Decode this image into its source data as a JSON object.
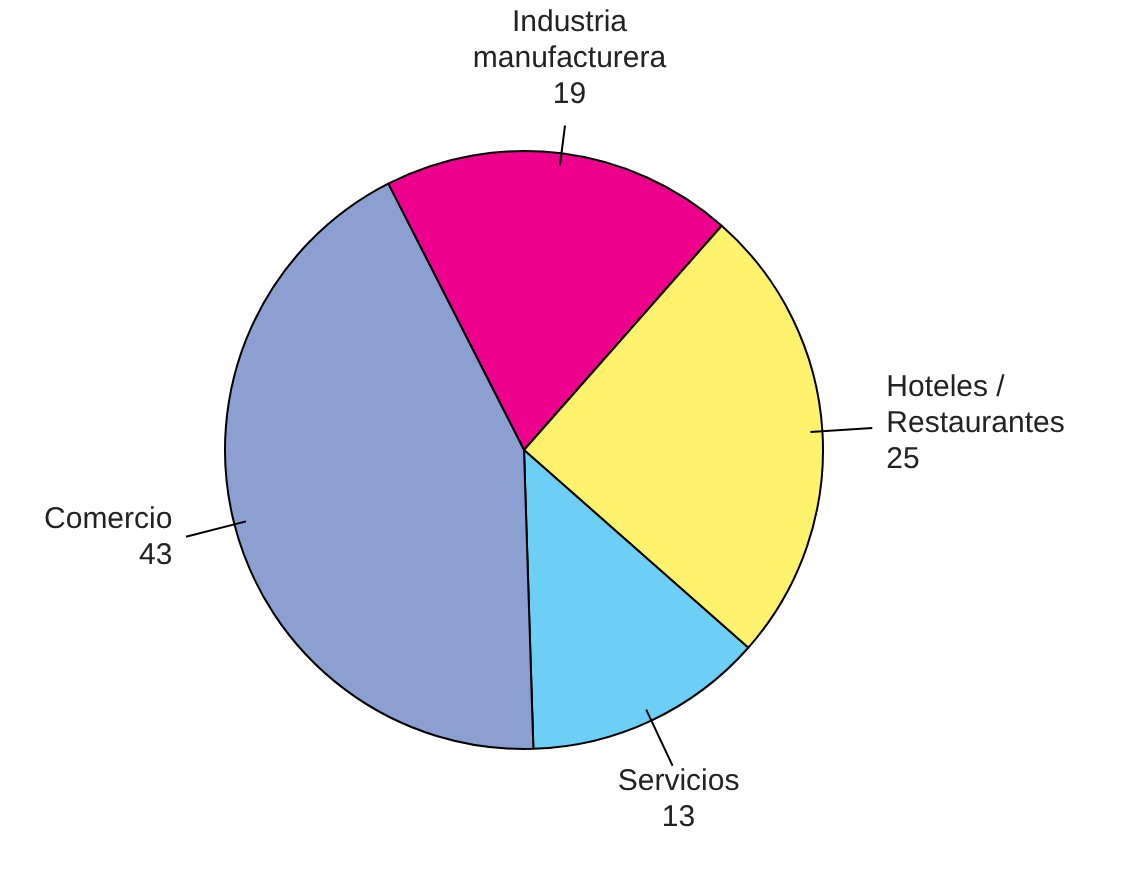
{
  "chart_data": {
    "type": "pie",
    "categories": [
      "Industria manufacturera",
      "Hoteles / Restaurantes",
      "Servicios",
      "Comercio"
    ],
    "values": [
      19,
      25,
      13,
      43
    ],
    "colors": [
      "#ec008c",
      "#fff36e",
      "#6dcff6",
      "#8c9fd1"
    ],
    "data_labels": true,
    "legend": false
  }
}
